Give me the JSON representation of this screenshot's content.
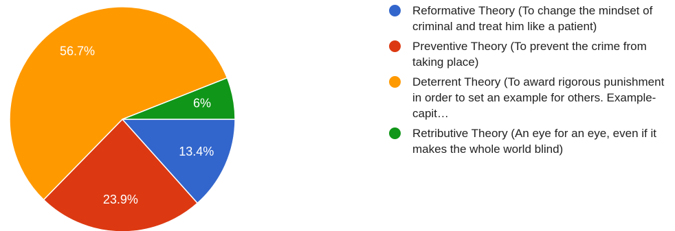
{
  "chart_data": {
    "type": "pie",
    "title": "",
    "slices": [
      {
        "name": "Reformative Theory (To change the mindset of criminal and treat him like a patient)",
        "value": 13.4,
        "label": "13.4%",
        "color": "#3366cc"
      },
      {
        "name": "Preventive Theory (To prevent the crime from taking place)",
        "value": 23.9,
        "label": "23.9%",
        "color": "#dc3912"
      },
      {
        "name": "Deterrent Theory (To award rigorous punishment in order to set an example for others. Example- capit…",
        "value": 56.7,
        "label": "56.7%",
        "color": "#ff9900"
      },
      {
        "name": "Retributive Theory (An eye for an eye, even if it makes the whole world blind)",
        "value": 6,
        "label": "6%",
        "color": "#109618"
      }
    ],
    "legend_position": "right"
  }
}
